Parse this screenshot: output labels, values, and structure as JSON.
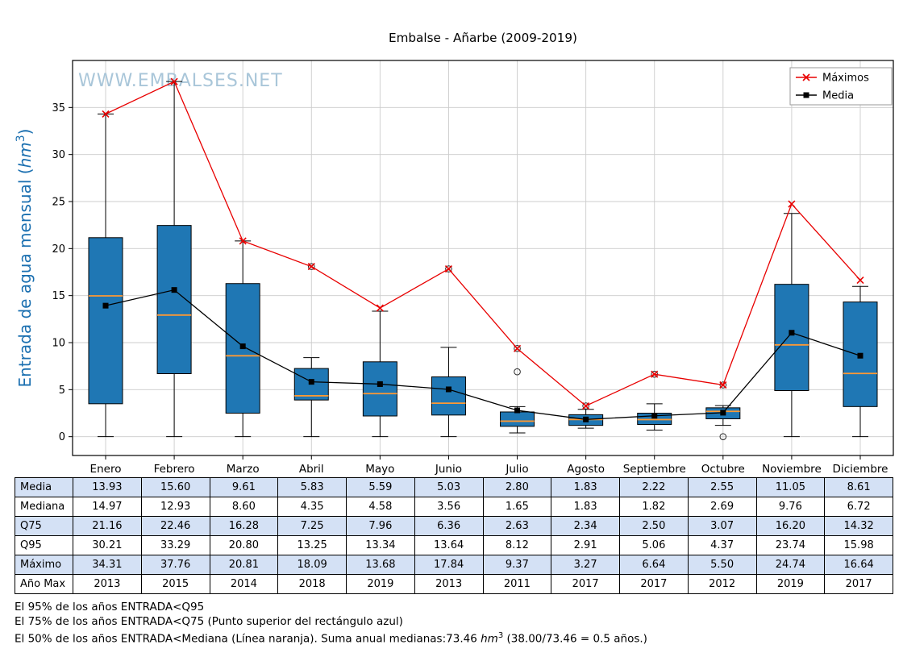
{
  "title": "Embalse - Añarbe (2009-2019)",
  "watermark": "WWW.EMBALSES.NET",
  "ylabel": {
    "pre": "Entrada de agua mensual (",
    "unit": "hm",
    "sup": "3",
    "post": ")"
  },
  "legend": {
    "items": [
      {
        "label": "Máximos"
      },
      {
        "label": "Media"
      }
    ]
  },
  "colors": {
    "box_fill": "#1f77b4",
    "box_edge": "#000000",
    "median_line": "#ff9933",
    "maximos_line": "#e80000",
    "media_line": "#000000",
    "ylabel_text": "#1a6fb0",
    "watermark_text": "#a9c6d9",
    "grid": "#cccccc",
    "table_alt_row": "#d4e1f5"
  },
  "chart_data": {
    "type": "boxplot_with_lines",
    "title": "Embalse - Añarbe (2009-2019)",
    "ylabel": "Entrada de agua mensual (hm3)",
    "ylim": [
      -2,
      40
    ],
    "yticks": [
      0,
      5,
      10,
      15,
      20,
      25,
      30,
      35
    ],
    "grid": true,
    "legend_position": "top-right",
    "categories": [
      "Enero",
      "Febrero",
      "Marzo",
      "Abril",
      "Mayo",
      "Junio",
      "Julio",
      "Agosto",
      "Septiembre",
      "Octubre",
      "Noviembre",
      "Diciembre"
    ],
    "boxes": [
      {
        "q1": 3.5,
        "med": 14.97,
        "q3": 21.16,
        "lo": 0,
        "hi": 34.31,
        "fliers": []
      },
      {
        "q1": 6.7,
        "med": 12.93,
        "q3": 22.46,
        "lo": 0,
        "hi": 37.76,
        "fliers": []
      },
      {
        "q1": 2.5,
        "med": 8.6,
        "q3": 16.28,
        "lo": 0,
        "hi": 20.81,
        "fliers": []
      },
      {
        "q1": 3.9,
        "med": 4.35,
        "q3": 7.25,
        "lo": 0,
        "hi": 8.4,
        "fliers": [
          18.09
        ]
      },
      {
        "q1": 2.2,
        "med": 4.58,
        "q3": 7.96,
        "lo": 0,
        "hi": 13.34,
        "fliers": []
      },
      {
        "q1": 2.3,
        "med": 3.56,
        "q3": 6.36,
        "lo": 0,
        "hi": 9.5,
        "fliers": [
          17.84
        ]
      },
      {
        "q1": 1.1,
        "med": 1.65,
        "q3": 2.63,
        "lo": 0.4,
        "hi": 3.2,
        "fliers": [
          6.9,
          9.37
        ]
      },
      {
        "q1": 1.2,
        "med": 1.83,
        "q3": 2.34,
        "lo": 0.9,
        "hi": 2.91,
        "fliers": [
          3.27
        ]
      },
      {
        "q1": 1.3,
        "med": 1.82,
        "q3": 2.5,
        "lo": 0.7,
        "hi": 3.5,
        "fliers": [
          6.64
        ]
      },
      {
        "q1": 1.9,
        "med": 2.69,
        "q3": 3.07,
        "lo": 1.2,
        "hi": 3.3,
        "fliers": [
          0.0,
          5.5
        ]
      },
      {
        "q1": 4.9,
        "med": 9.76,
        "q3": 16.2,
        "lo": 0,
        "hi": 23.74,
        "fliers": []
      },
      {
        "q1": 3.2,
        "med": 6.72,
        "q3": 14.32,
        "lo": 0,
        "hi": 15.98,
        "fliers": []
      }
    ],
    "series": [
      {
        "name": "Máximos",
        "marker": "x",
        "color": "#e80000",
        "values": [
          34.31,
          37.76,
          20.81,
          18.09,
          13.68,
          17.84,
          9.37,
          3.27,
          6.64,
          5.5,
          24.74,
          16.64
        ]
      },
      {
        "name": "Media",
        "marker": "square",
        "color": "#000000",
        "values": [
          13.93,
          15.6,
          9.61,
          5.83,
          5.59,
          5.03,
          2.8,
          1.83,
          2.22,
          2.55,
          11.05,
          8.61
        ]
      }
    ],
    "table": {
      "row_labels": [
        "Media",
        "Mediana",
        "Q75",
        "Q95",
        "Máximo",
        "Año Max"
      ],
      "rows": [
        [
          "13.93",
          "15.60",
          "9.61",
          "5.83",
          "5.59",
          "5.03",
          "2.80",
          "1.83",
          "2.22",
          "2.55",
          "11.05",
          "8.61"
        ],
        [
          "14.97",
          "12.93",
          "8.60",
          "4.35",
          "4.58",
          "3.56",
          "1.65",
          "1.83",
          "1.82",
          "2.69",
          "9.76",
          "6.72"
        ],
        [
          "21.16",
          "22.46",
          "16.28",
          "7.25",
          "7.96",
          "6.36",
          "2.63",
          "2.34",
          "2.50",
          "3.07",
          "16.20",
          "14.32"
        ],
        [
          "30.21",
          "33.29",
          "20.80",
          "13.25",
          "13.34",
          "13.64",
          "8.12",
          "2.91",
          "5.06",
          "4.37",
          "23.74",
          "15.98"
        ],
        [
          "34.31",
          "37.76",
          "20.81",
          "18.09",
          "13.68",
          "17.84",
          "9.37",
          "3.27",
          "6.64",
          "5.50",
          "24.74",
          "16.64"
        ],
        [
          "2013",
          "2015",
          "2014",
          "2018",
          "2019",
          "2013",
          "2011",
          "2017",
          "2017",
          "2012",
          "2019",
          "2017"
        ]
      ]
    }
  },
  "footnotes": {
    "line1": "El 95% de los años ENTRADA<Q95",
    "line2": "El 75% de los años ENTRADA<Q75 (Punto superior del rectángulo azul)",
    "line3": {
      "pre": "El 50% de los años ENTRADA<Mediana (Línea naranja). Suma anual medianas:73.46 ",
      "unit": "hm",
      "sup": "3",
      "post": " (38.00/73.46 = 0.5 años.)"
    }
  }
}
